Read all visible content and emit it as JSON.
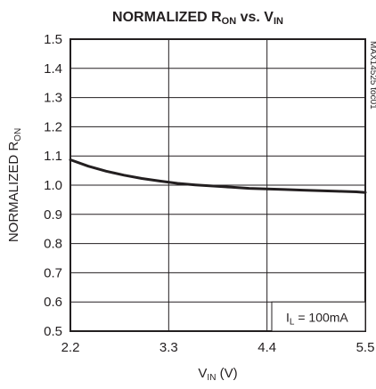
{
  "chart_data": {
    "type": "line",
    "title": {
      "main": "NORMALIZED R",
      "sub": "ON",
      "mid": " vs. V",
      "sub2": "IN"
    },
    "xlabel": {
      "main": "V",
      "sub": "IN",
      "tail": " (V)"
    },
    "ylabel": {
      "main": "NORMALIZED R",
      "sub": "ON"
    },
    "xlim": [
      2.2,
      5.5
    ],
    "ylim": [
      0.5,
      1.5
    ],
    "x_ticks": [
      2.2,
      3.3,
      4.4,
      5.5
    ],
    "x_tick_labels": [
      "2.2",
      "3.3",
      "4.4",
      "5.5"
    ],
    "y_ticks": [
      0.5,
      0.6,
      0.7,
      0.8,
      0.9,
      1.0,
      1.1,
      1.2,
      1.3,
      1.4,
      1.5
    ],
    "y_tick_labels": [
      "0.5",
      "0.6",
      "0.7",
      "0.8",
      "0.9",
      "1.0",
      "1.1",
      "1.2",
      "1.3",
      "1.4",
      "1.5"
    ],
    "grid": true,
    "series": [
      {
        "x": [
          2.2,
          2.4,
          2.6,
          2.8,
          3.0,
          3.2,
          3.4,
          3.6,
          3.8,
          4.0,
          4.2,
          4.4,
          4.6,
          4.8,
          5.0,
          5.2,
          5.4,
          5.5
        ],
        "values": [
          1.087,
          1.065,
          1.048,
          1.034,
          1.023,
          1.014,
          1.006,
          1.001,
          0.997,
          0.993,
          0.989,
          0.987,
          0.985,
          0.983,
          0.981,
          0.979,
          0.977,
          0.975
        ]
      }
    ],
    "annotation": {
      "main": "I",
      "sub": "L",
      "tail": " = 100mA"
    },
    "figure_id": "MAX14525 toc01"
  }
}
